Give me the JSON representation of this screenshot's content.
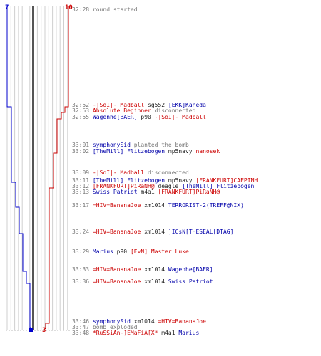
{
  "chart": {
    "blue_team": {
      "start_count": "7",
      "end_count": "0",
      "color": "#0000cc"
    },
    "red_team": {
      "start_count": "10",
      "end_count": "3",
      "color": "#cc0000"
    }
  },
  "events": [
    {
      "time": "32:28",
      "parts": [
        {
          "text": "round started",
          "c": "grey"
        }
      ]
    },
    {
      "time": "32:52",
      "parts": [
        {
          "text": "-|SoI|- Madball",
          "c": "red"
        },
        {
          "text": "sg552",
          "c": "blk"
        },
        {
          "text": "[EKK]Kaneda",
          "c": "blue"
        }
      ]
    },
    {
      "time": "32:53",
      "parts": [
        {
          "text": "Absolute Beginner",
          "c": "red"
        },
        {
          "text": "disconnected",
          "c": "grey"
        }
      ]
    },
    {
      "time": "32:55",
      "parts": [
        {
          "text": "Wagenhe[BAER]",
          "c": "blue"
        },
        {
          "text": "p90",
          "c": "blk"
        },
        {
          "text": "-|SoI|- Madball",
          "c": "red"
        }
      ]
    },
    {
      "time": "33:01",
      "parts": [
        {
          "text": "symphonySid",
          "c": "blue"
        },
        {
          "text": "planted the bomb",
          "c": "grey"
        }
      ]
    },
    {
      "time": "33:02",
      "parts": [
        {
          "text": "[TheMill] Flitzebogen",
          "c": "blue"
        },
        {
          "text": "mp5navy",
          "c": "blk"
        },
        {
          "text": "nanosek",
          "c": "red"
        }
      ]
    },
    {
      "time": "33:09",
      "parts": [
        {
          "text": "-|SoI|- Madball",
          "c": "red"
        },
        {
          "text": "disconnected",
          "c": "grey"
        }
      ]
    },
    {
      "time": "33:11",
      "parts": [
        {
          "text": "[TheMill] Flitzebogen",
          "c": "blue"
        },
        {
          "text": "mp5navy",
          "c": "blk"
        },
        {
          "text": "[FRANKFURT]CAEPTNH",
          "c": "red"
        }
      ]
    },
    {
      "time": "33:12",
      "parts": [
        {
          "text": "[FRANKFURT]PiRaNH@",
          "c": "red"
        },
        {
          "text": "deagle",
          "c": "blk"
        },
        {
          "text": "[TheMill] Flitzebogen",
          "c": "blue"
        }
      ]
    },
    {
      "time": "33:13",
      "parts": [
        {
          "text": "Swiss Patriot",
          "c": "blue"
        },
        {
          "text": "m4a1",
          "c": "blk"
        },
        {
          "text": "[FRANKFURT]PiRaNH@",
          "c": "red"
        }
      ]
    },
    {
      "time": "33:17",
      "parts": [
        {
          "text": "=HIV=BananaJoe",
          "c": "red"
        },
        {
          "text": "xm1014",
          "c": "blk"
        },
        {
          "text": "TERRORIST-2(TREFF@NIX)",
          "c": "blue"
        }
      ]
    },
    {
      "time": "33:24",
      "parts": [
        {
          "text": "=HIV=BananaJoe",
          "c": "red"
        },
        {
          "text": "xm1014",
          "c": "blk"
        },
        {
          "text": "]ICsN[THESEAL[DTAG]",
          "c": "blue"
        }
      ]
    },
    {
      "time": "33:29",
      "parts": [
        {
          "text": "Marius",
          "c": "blue"
        },
        {
          "text": "p90",
          "c": "blk"
        },
        {
          "text": "[EvN] Master Luke",
          "c": "red"
        }
      ]
    },
    {
      "time": "33:33",
      "parts": [
        {
          "text": "=HIV=BananaJoe",
          "c": "red"
        },
        {
          "text": "xm1014",
          "c": "blk"
        },
        {
          "text": "Wagenhe[BAER]",
          "c": "blue"
        }
      ]
    },
    {
      "time": "33:36",
      "parts": [
        {
          "text": "=HIV=BananaJoe",
          "c": "red"
        },
        {
          "text": "xm1014",
          "c": "blk"
        },
        {
          "text": "Swiss Patriot",
          "c": "blue"
        }
      ]
    },
    {
      "time": "33:46",
      "parts": [
        {
          "text": "symphonySid",
          "c": "blue"
        },
        {
          "text": "xm1014",
          "c": "blk"
        },
        {
          "text": "=HIV=BananaJoe",
          "c": "red"
        }
      ]
    },
    {
      "time": "33:47",
      "parts": [
        {
          "text": "bomb exploded",
          "c": "grey"
        }
      ]
    },
    {
      "time": "33:48",
      "parts": [
        {
          "text": "*RuSSiAn-]EMaFiA[X*",
          "c": "red"
        },
        {
          "text": "m4a1",
          "c": "blk"
        },
        {
          "text": "Marius",
          "c": "blue"
        }
      ]
    }
  ]
}
